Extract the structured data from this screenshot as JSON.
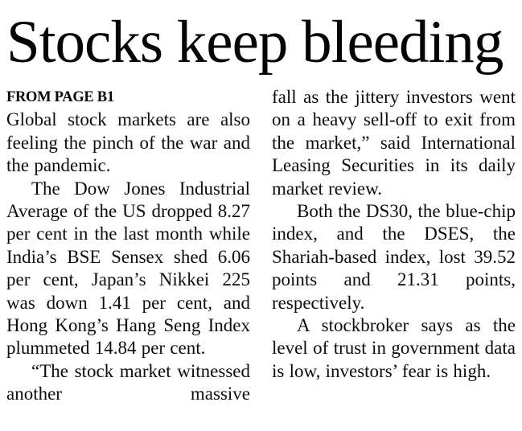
{
  "article": {
    "headline": "Stocks keep bleeding",
    "kicker": "FROM PAGE B1",
    "text_color": "#0d0d0d",
    "background_color": "#ffffff",
    "columns": [
      {
        "paragraphs": [
          {
            "text": "Global stock markets are also feeling the pinch of the war and the pandemic."
          },
          {
            "text": "The Dow Jones Industrial Average of the US dropped 8.27 per cent in the last month while India’s BSE Sensex shed 6.06 per cent, Japan’s Nikkei 225 was down 1.41 per cent, and Hong Kong’s Hang Seng Index plummeted 14.84 per cent."
          },
          {
            "text": "“The stock market witnessed another massive"
          }
        ]
      },
      {
        "paragraphs": [
          {
            "text": "fall as the jittery investors went on a heavy sell-off to exit from the market,” said International Leasing Securities in its daily market review."
          },
          {
            "text": "Both the DS30, the blue-chip index, and the DSES, the Shariah-based index, lost 39.52 points and 21.31 points, respectively."
          },
          {
            "text": "A stockbroker says as the level of trust in government data is low, investors’ fear is high."
          }
        ]
      }
    ]
  }
}
